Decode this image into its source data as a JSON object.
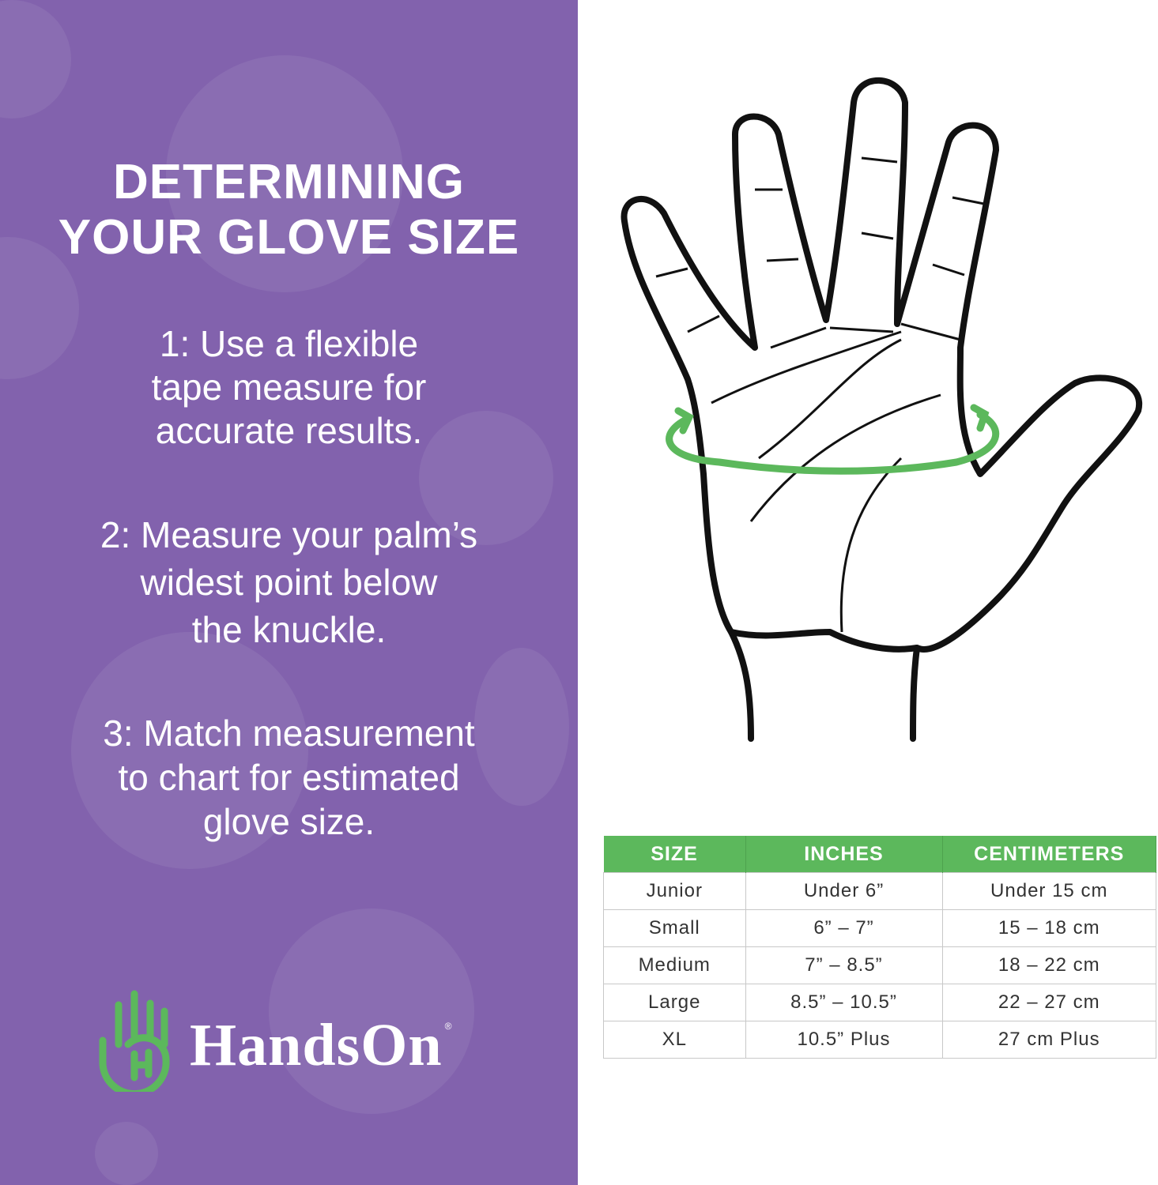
{
  "title": {
    "line1": "DETERMINING",
    "line2": "YOUR GLOVE SIZE"
  },
  "steps": [
    {
      "lines": [
        "1: Use a flexible",
        "tape measure for",
        "accurate results."
      ]
    },
    {
      "lines": [
        "2: Measure your palm’s",
        "widest point below",
        "the knuckle."
      ]
    },
    {
      "lines": [
        "3: Match measurement",
        "to chart for estimated",
        "glove size."
      ]
    }
  ],
  "brand": {
    "name": "HandsOn",
    "registered": "®",
    "logo_icon": "hand-h-logo-icon"
  },
  "colors": {
    "panel": "#8262ad",
    "accent": "#5cb85c"
  },
  "illustration": {
    "icon": "hand-outline-with-measure-arrow-icon"
  },
  "size_chart": {
    "headers": [
      "SIZE",
      "INCHES",
      "CENTIMETERS"
    ],
    "rows": [
      [
        "Junior",
        "Under 6”",
        "Under 15 cm"
      ],
      [
        "Small",
        "6” – 7”",
        "15 – 18 cm"
      ],
      [
        "Medium",
        "7” – 8.5”",
        "18 – 22 cm"
      ],
      [
        "Large",
        "8.5” – 10.5”",
        "22 – 27 cm"
      ],
      [
        "XL",
        "10.5” Plus",
        "27 cm Plus"
      ]
    ]
  }
}
